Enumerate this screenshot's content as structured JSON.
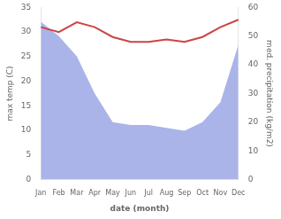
{
  "chart_data": {
    "type": "line",
    "categories": [
      "Jan",
      "Feb",
      "Mar",
      "Apr",
      "May",
      "Jun",
      "Jul",
      "Aug",
      "Sep",
      "Oct",
      "Nov",
      "Dec"
    ],
    "xlabel": "date (month)",
    "ylabel": "max temp (C)",
    "y2label": "med. precipitation (kg/m2)",
    "series": [
      {
        "type": "line",
        "color": "#cc4444",
        "values": [
          31.0,
          30.0,
          32.0,
          31.0,
          29.0,
          28.0,
          28.0,
          28.5,
          28.0,
          29.0,
          31.0,
          32.5
        ]
      },
      {
        "type": "area",
        "color": "#aab4e8",
        "axis": "y2",
        "values": [
          55,
          50,
          43,
          30,
          20,
          19,
          19,
          18,
          17,
          20,
          27,
          47
        ]
      }
    ],
    "ylim": [
      0,
      35
    ],
    "yticks": [
      0,
      5,
      10,
      15,
      20,
      25,
      30,
      35
    ],
    "y2lim": [
      0,
      60
    ],
    "y2ticks": [
      0,
      10,
      20,
      30,
      40,
      50,
      60
    ],
    "grid": false
  }
}
